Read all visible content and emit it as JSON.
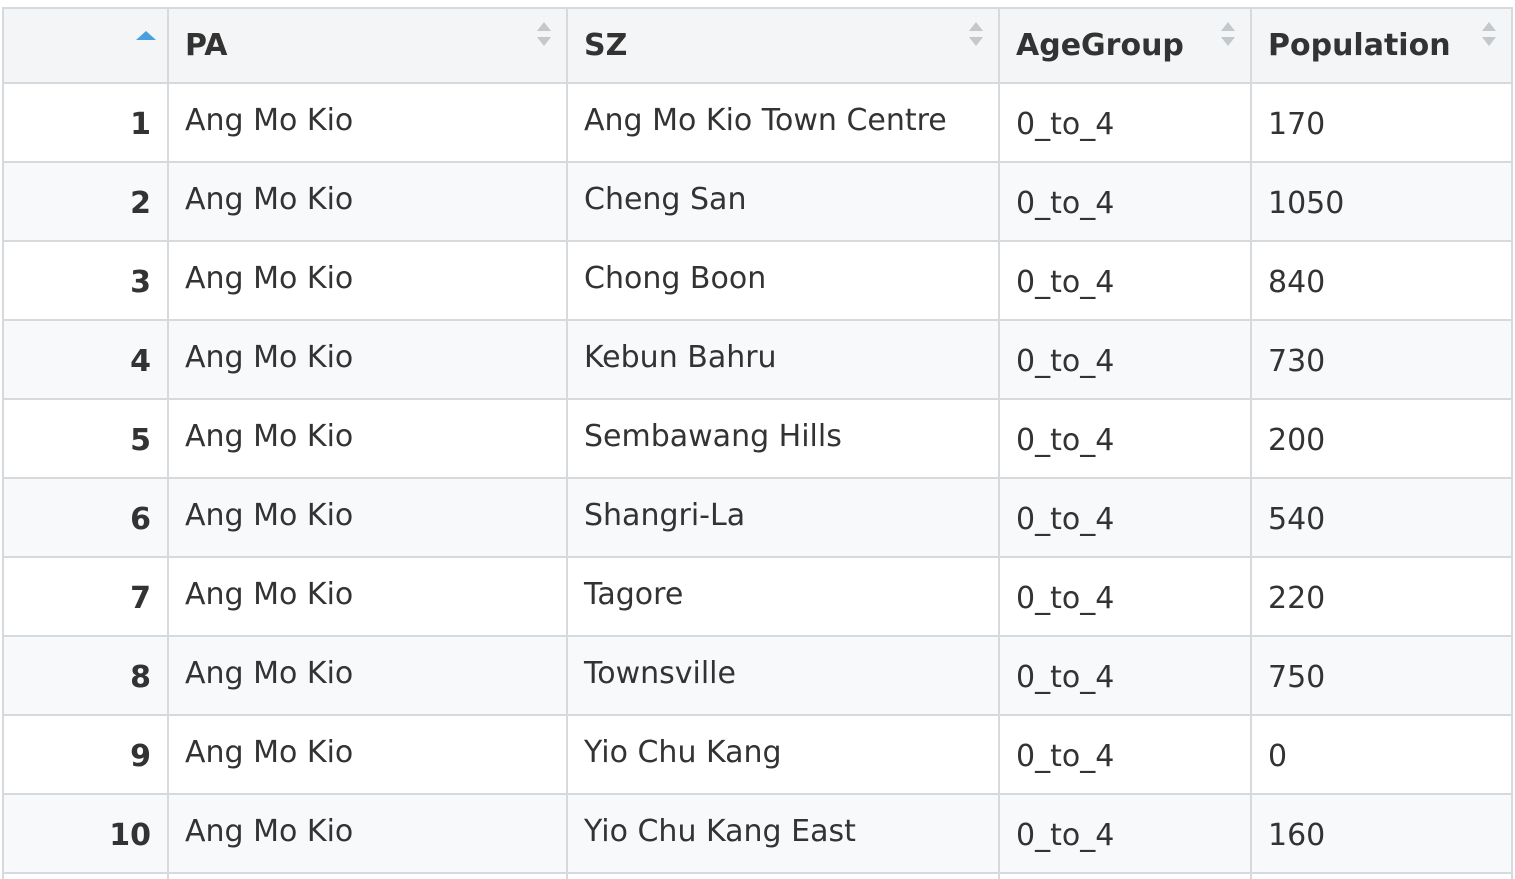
{
  "table": {
    "columns": [
      {
        "key": "index",
        "label": ""
      },
      {
        "key": "PA",
        "label": "PA"
      },
      {
        "key": "SZ",
        "label": "SZ"
      },
      {
        "key": "AgeGroup",
        "label": "AgeGroup"
      },
      {
        "key": "Population",
        "label": "Population"
      }
    ],
    "sort": {
      "column": "index",
      "direction": "ascending",
      "indicator_icon": "sort-ascending-icon",
      "accent_color": "#4a9fe0"
    },
    "sortable_icon": "sort-both-icon",
    "rows": [
      {
        "index": "1",
        "PA": "Ang Mo Kio",
        "SZ": "Ang Mo Kio Town Centre",
        "AgeGroup": "0_to_4",
        "Population": "170"
      },
      {
        "index": "2",
        "PA": "Ang Mo Kio",
        "SZ": "Cheng San",
        "AgeGroup": "0_to_4",
        "Population": "1050"
      },
      {
        "index": "3",
        "PA": "Ang Mo Kio",
        "SZ": "Chong Boon",
        "AgeGroup": "0_to_4",
        "Population": "840"
      },
      {
        "index": "4",
        "PA": "Ang Mo Kio",
        "SZ": "Kebun Bahru",
        "AgeGroup": "0_to_4",
        "Population": "730"
      },
      {
        "index": "5",
        "PA": "Ang Mo Kio",
        "SZ": "Sembawang Hills",
        "AgeGroup": "0_to_4",
        "Population": "200"
      },
      {
        "index": "6",
        "PA": "Ang Mo Kio",
        "SZ": "Shangri-La",
        "AgeGroup": "0_to_4",
        "Population": "540"
      },
      {
        "index": "7",
        "PA": "Ang Mo Kio",
        "SZ": "Tagore",
        "AgeGroup": "0_to_4",
        "Population": "220"
      },
      {
        "index": "8",
        "PA": "Ang Mo Kio",
        "SZ": "Townsville",
        "AgeGroup": "0_to_4",
        "Population": "750"
      },
      {
        "index": "9",
        "PA": "Ang Mo Kio",
        "SZ": "Yio Chu Kang",
        "AgeGroup": "0_to_4",
        "Population": "0"
      },
      {
        "index": "10",
        "PA": "Ang Mo Kio",
        "SZ": "Yio Chu Kang East",
        "AgeGroup": "0_to_4",
        "Population": "160"
      }
    ]
  }
}
